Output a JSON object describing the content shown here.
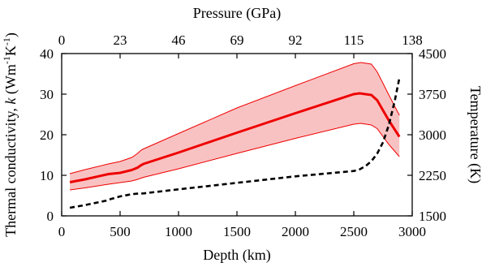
{
  "chart_data": {
    "type": "line",
    "title": "",
    "xlabel": "Depth (km)",
    "x2label": "Pressure (GPa)",
    "ylabel_prefix": "Thermal conductivity, ",
    "ylabel_var": "k",
    "ylabel_unit_open": " (Wm",
    "ylabel_unit_mid": "K",
    "ylabel_unit_close": ")",
    "ylabel_exp": "-1",
    "y2label": "Temperature (K)",
    "xlim": [
      0,
      3000
    ],
    "ylim": [
      0,
      40
    ],
    "y2lim": [
      1500,
      4500
    ],
    "x2lim": [
      0,
      138
    ],
    "xticks": [
      "0",
      "500",
      "1000",
      "1500",
      "2000",
      "2500",
      "3000"
    ],
    "yticks": [
      "0",
      "10",
      "20",
      "30",
      "40"
    ],
    "x2ticks": [
      "0",
      "23",
      "46",
      "69",
      "92",
      "115",
      "138"
    ],
    "y2ticks": [
      "1500",
      "2250",
      "3000",
      "3750",
      "4500"
    ],
    "grid": false,
    "colors": {
      "conductivity": "#ee0000",
      "band": "#f9c2c2",
      "temperature": "#000000"
    },
    "series": [
      {
        "axis": "left",
        "style": "solid",
        "x": [
          70,
          200,
          400,
          500,
          600,
          650,
          680,
          700,
          1000,
          1500,
          2000,
          2500,
          2550,
          2650,
          2700,
          2800,
          2890
        ],
        "values": [
          8.3,
          9.0,
          10.3,
          10.6,
          11.3,
          11.9,
          12.5,
          12.8,
          15.6,
          20.5,
          25.3,
          30.0,
          30.2,
          29.8,
          28.5,
          23.5,
          19.5
        ]
      },
      {
        "axis": "left",
        "style": "band-upper",
        "x": [
          70,
          200,
          400,
          500,
          600,
          650,
          680,
          700,
          1000,
          1500,
          2000,
          2500,
          2560,
          2650,
          2700,
          2800,
          2890
        ],
        "values": [
          10.4,
          11.4,
          12.8,
          13.4,
          14.4,
          15.4,
          16.2,
          16.5,
          20.3,
          26.6,
          32.1,
          37.5,
          37.8,
          37.4,
          35.5,
          29.8,
          24.8
        ]
      },
      {
        "axis": "left",
        "style": "band-lower",
        "x": [
          70,
          200,
          400,
          500,
          600,
          650,
          680,
          700,
          1000,
          1500,
          2000,
          2500,
          2560,
          2650,
          2700,
          2800,
          2890
        ],
        "values": [
          6.4,
          6.9,
          7.8,
          8.2,
          8.6,
          9.0,
          9.3,
          9.5,
          11.6,
          15.4,
          19.1,
          22.6,
          22.8,
          22.4,
          21.5,
          17.6,
          14.6
        ]
      },
      {
        "axis": "right",
        "style": "dashed",
        "x": [
          70,
          200,
          380,
          420,
          500,
          600,
          640,
          700,
          1000,
          1500,
          2000,
          2500,
          2550,
          2600,
          2650,
          2700,
          2750,
          2800,
          2850,
          2890
        ],
        "values": [
          1650,
          1700,
          1780,
          1810,
          1860,
          1900,
          1910,
          1915,
          1990,
          2110,
          2230,
          2330,
          2360,
          2420,
          2510,
          2650,
          2860,
          3180,
          3620,
          4050
        ]
      }
    ]
  }
}
